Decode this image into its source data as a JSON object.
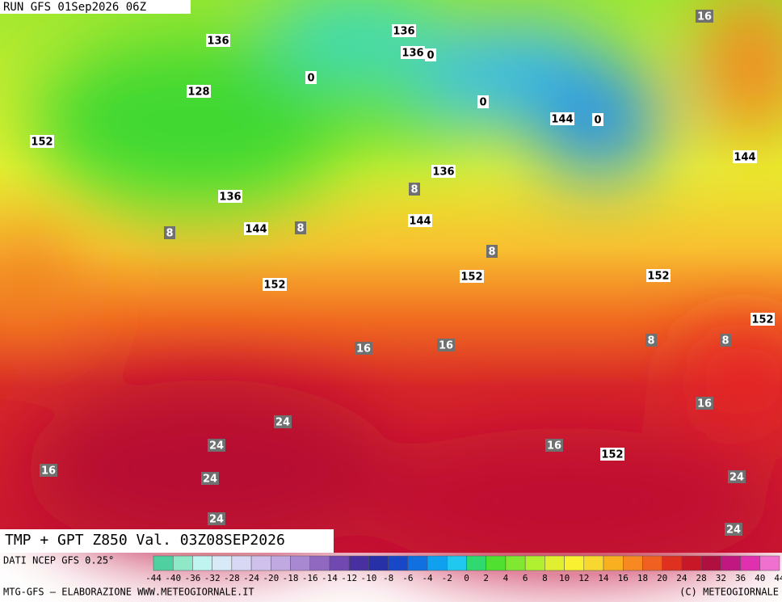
{
  "header": {
    "run": "RUN GFS 01Sep2026 06Z"
  },
  "map": {
    "labels": [
      136,
      136,
      136,
      0,
      128,
      0,
      0,
      144,
      0,
      16,
      152,
      144,
      136,
      136,
      8,
      144,
      8,
      8,
      144,
      8,
      152,
      152,
      152,
      152,
      8,
      8,
      16,
      16,
      16,
      24,
      24,
      16,
      152,
      16,
      24,
      24,
      24,
      24
    ]
  },
  "footer": {
    "title": "TMP + GPT Z850 Val. 03Z08SEP2026",
    "source": "DATI NCEP GFS 0.25°",
    "credit": "MTG-GFS — ELABORAZIONE WWW.METEOGIORNALE.IT",
    "copyright": "(C) METEOGIORNALE"
  },
  "legend": {
    "ticks": [
      -44,
      -40,
      -36,
      -32,
      -28,
      -24,
      -20,
      -18,
      -16,
      -14,
      -12,
      -10,
      -8,
      -6,
      -4,
      -2,
      0,
      2,
      4,
      6,
      8,
      10,
      12,
      14,
      16,
      18,
      20,
      24,
      28,
      32,
      36,
      40,
      44
    ],
    "colors": [
      "#4fd0a0",
      "#8fe8c8",
      "#c0f4f0",
      "#d8eaf8",
      "#d8d8f4",
      "#d0c0ec",
      "#c0a8e0",
      "#a888d0",
      "#9068c0",
      "#7048b0",
      "#4830a0",
      "#2830a8",
      "#1848c8",
      "#1070e0",
      "#10a0f0",
      "#20c8f0",
      "#30d870",
      "#50e030",
      "#80e830",
      "#b0f030",
      "#e0f030",
      "#f8f030",
      "#f8d830",
      "#f8b020",
      "#f88820",
      "#f06020",
      "#e03020",
      "#c81828",
      "#b01040",
      "#c01880",
      "#e030b0",
      "#f070d0"
    ]
  }
}
